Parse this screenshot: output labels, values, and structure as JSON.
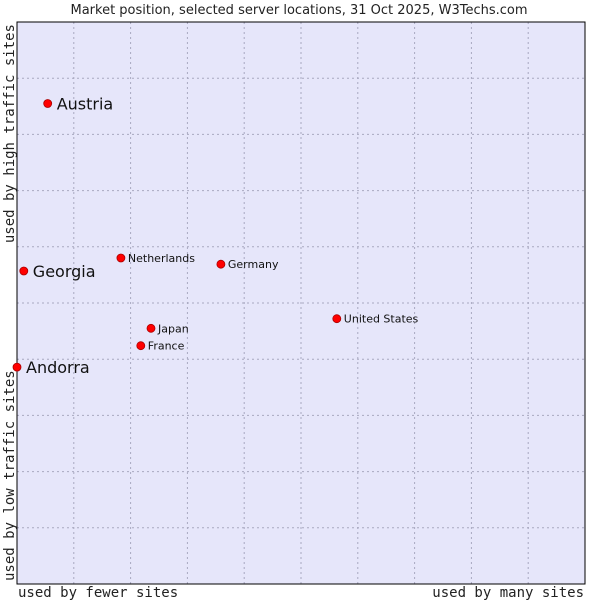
{
  "chart_data": {
    "type": "scatter",
    "title": "Market position, selected server locations, 31 Oct 2025, W3Techs.com",
    "xlabel_left": "used by fewer sites",
    "xlabel_right": "used by many sites",
    "ylabel_bottom": "used by low traffic sites",
    "ylabel_top": "used by high traffic sites",
    "xlim": [
      0,
      100
    ],
    "ylim": [
      0,
      100
    ],
    "grid": true,
    "colors": {
      "plot_background": "#e6e6fa",
      "point_fill": "#ff0000",
      "grid": "#a8a8c0",
      "border": "#000000"
    },
    "points": [
      {
        "label": "Austria",
        "x": 5.4,
        "y": 85.5,
        "emphasis": true
      },
      {
        "label": "Georgia",
        "x": 1.2,
        "y": 55.7,
        "emphasis": true
      },
      {
        "label": "Andorra",
        "x": 0.0,
        "y": 38.6,
        "emphasis": true
      },
      {
        "label": "Netherlands",
        "x": 18.3,
        "y": 58.0,
        "emphasis": false
      },
      {
        "label": "Germany",
        "x": 35.9,
        "y": 56.9,
        "emphasis": false
      },
      {
        "label": "United States",
        "x": 56.3,
        "y": 47.2,
        "emphasis": false
      },
      {
        "label": "Japan",
        "x": 23.6,
        "y": 45.5,
        "emphasis": false
      },
      {
        "label": "France",
        "x": 21.8,
        "y": 42.4,
        "emphasis": false
      }
    ]
  }
}
